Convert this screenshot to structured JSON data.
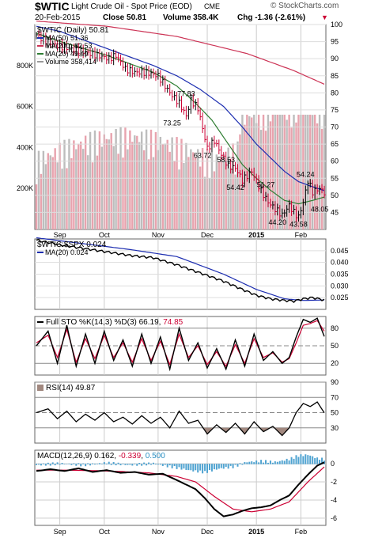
{
  "header": {
    "symbol": "$WTIC",
    "name": "Light Crude Oil - Spot Price (EOD)",
    "exchange": "CME",
    "date": "20-Feb-2015",
    "close": "Close 50.81",
    "volume": "Volume 358.4K",
    "change": "Chg -1.36 (-2.61%)",
    "change_arrow": "▼",
    "watermark": "© StockCharts.com",
    "colors": {
      "down": "#cc0033",
      "up": "#000000",
      "ma50": "#1c2db0",
      "ma200": "#cc3355",
      "ma20": "#2e7d32"
    }
  },
  "chart_data": [
    {
      "type": "bar",
      "title": "$WTIC (Daily) 50.81",
      "legend": [
        {
          "name": "MA(50) 51.36",
          "color": "#1c2db0"
        },
        {
          "name": "MA(200) 82.53",
          "color": "#cc3355"
        },
        {
          "name": "MA(20) 49.49",
          "color": "#2e7d32"
        },
        {
          "name": "Volume 358,414",
          "color": "#999999"
        }
      ],
      "x_tick_labels": [
        "Sep",
        "Oct",
        "Nov",
        "Dec",
        "2015",
        "Feb"
      ],
      "x_tick_positions": [
        10,
        29,
        52,
        73,
        94,
        113
      ],
      "num_days": 124,
      "ylim": [
        40,
        100
      ],
      "y_ticks": [
        45,
        50,
        55,
        60,
        65,
        70,
        75,
        80,
        85,
        90,
        95,
        100
      ],
      "volume_ticks": [
        "200K",
        "400K",
        "600K",
        "800K"
      ],
      "price_anchors_x": [
        0,
        3,
        8,
        14,
        20,
        26,
        31,
        34,
        38,
        42,
        47,
        52,
        57,
        61,
        64,
        66,
        69,
        73,
        76,
        79,
        82,
        85,
        88,
        92,
        96,
        99,
        102,
        105,
        108,
        110,
        112,
        114,
        116,
        118,
        121,
        123
      ],
      "price_anchors_y": [
        97,
        95.5,
        94,
        93,
        92,
        91,
        90,
        91,
        87,
        86,
        86,
        85,
        80,
        77,
        73.25,
        77.8,
        75.5,
        63.72,
        66,
        62,
        58.53,
        58,
        54.42,
        57,
        51.27,
        48,
        46,
        44.2,
        47,
        45,
        43.58,
        48,
        54.24,
        51,
        52,
        50.81
      ],
      "ma20_anchors_x": [
        0,
        8,
        20,
        30,
        40,
        50,
        60,
        68,
        75,
        82,
        88,
        94,
        100,
        106,
        112,
        118,
        123
      ],
      "ma20_anchors_y": [
        97.5,
        95.5,
        93,
        91,
        88.5,
        86,
        82,
        77,
        72,
        65,
        59,
        55,
        51.5,
        48.5,
        47.5,
        48.5,
        49.49
      ],
      "ma50_anchors_x": [
        0,
        10,
        20,
        30,
        40,
        50,
        60,
        70,
        80,
        88,
        94,
        100,
        106,
        112,
        118,
        123
      ],
      "ma50_anchors_y": [
        99.5,
        98,
        95.5,
        93,
        90.5,
        88,
        85,
        81,
        76,
        70,
        65,
        61,
        57,
        54,
        52.5,
        51.36
      ],
      "ma200_anchors_x": [
        0,
        30,
        60,
        90,
        110,
        123
      ],
      "ma200_anchors_y": [
        101,
        99.5,
        96.5,
        91.5,
        86.5,
        82.53
      ],
      "annotations": [
        {
          "text": "77.83",
          "day": 64,
          "price": 77.83
        },
        {
          "text": "73.25",
          "day": 58,
          "price": 73.25
        },
        {
          "text": "63.72",
          "day": 71,
          "price": 63.72
        },
        {
          "text": "58.53",
          "day": 81,
          "price": 58.53
        },
        {
          "text": "54.42",
          "day": 85,
          "price": 54.42
        },
        {
          "text": "51.27",
          "day": 98,
          "price": 51.27
        },
        {
          "text": "44.20",
          "day": 103,
          "price": 44.2
        },
        {
          "text": "43.58",
          "day": 112,
          "price": 43.58
        },
        {
          "text": "54.24",
          "day": 115,
          "price": 54.24
        },
        {
          "text": "48.05",
          "day": 121,
          "price": 48.05
        }
      ]
    },
    {
      "type": "line",
      "title": "$WTIC:$SPX 0.024",
      "legend": [
        {
          "name": "MA(20) 0.024",
          "color": "#1c2db0"
        }
      ],
      "ylim": [
        0.02,
        0.05
      ],
      "y_ticks": [
        0.025,
        0.03,
        0.035,
        0.04,
        0.045
      ],
      "y_tick_labels": [
        "0.025",
        "0.030",
        "0.035",
        "0.040",
        "0.045"
      ],
      "ratio_x": [
        0,
        10,
        20,
        30,
        40,
        50,
        60,
        70,
        80,
        88,
        94,
        100,
        106,
        110,
        114,
        118,
        123
      ],
      "ratio_y": [
        0.0495,
        0.0475,
        0.046,
        0.0445,
        0.043,
        0.042,
        0.039,
        0.0355,
        0.032,
        0.0285,
        0.026,
        0.0245,
        0.0238,
        0.0235,
        0.0245,
        0.025,
        0.024
      ],
      "ma_x": [
        0,
        20,
        40,
        60,
        80,
        94,
        106,
        114,
        123
      ],
      "ma_y": [
        0.0505,
        0.048,
        0.0455,
        0.0425,
        0.035,
        0.0285,
        0.0245,
        0.0238,
        0.024
      ]
    },
    {
      "type": "line",
      "title": "Full STO %K(14,3) %D(3) 66.19, 74.85",
      "title_parts": [
        "Full STO %K(14,3) %D(3) 66.19, ",
        "74.85"
      ],
      "ylim": [
        0,
        100
      ],
      "y_ticks": [
        20,
        50,
        80
      ],
      "k_x": [
        0,
        5,
        9,
        13,
        17,
        21,
        25,
        29,
        33,
        37,
        41,
        45,
        49,
        53,
        57,
        61,
        65,
        69,
        73,
        77,
        81,
        85,
        89,
        93,
        97,
        101,
        105,
        108,
        111,
        114,
        117,
        120,
        123
      ],
      "k_y": [
        50,
        75,
        20,
        85,
        15,
        70,
        20,
        75,
        25,
        60,
        15,
        70,
        20,
        65,
        10,
        80,
        25,
        55,
        12,
        45,
        10,
        60,
        15,
        70,
        25,
        40,
        20,
        30,
        65,
        95,
        90,
        97,
        66
      ],
      "d_x": [
        0,
        5,
        9,
        13,
        17,
        21,
        25,
        29,
        33,
        37,
        41,
        45,
        49,
        53,
        57,
        61,
        65,
        69,
        73,
        77,
        81,
        85,
        89,
        93,
        97,
        101,
        105,
        108,
        111,
        114,
        117,
        120,
        123
      ],
      "d_y": [
        55,
        68,
        30,
        78,
        22,
        62,
        28,
        68,
        30,
        55,
        22,
        62,
        25,
        58,
        18,
        70,
        30,
        50,
        18,
        40,
        15,
        52,
        20,
        62,
        30,
        38,
        22,
        28,
        55,
        85,
        88,
        93,
        75
      ]
    },
    {
      "type": "line",
      "title": "RSI(14) 49.87",
      "ylim": [
        10,
        90
      ],
      "y_ticks": [
        30,
        50,
        70,
        90
      ],
      "rsi_x": [
        0,
        5,
        9,
        13,
        17,
        21,
        25,
        29,
        33,
        37,
        41,
        45,
        49,
        53,
        57,
        61,
        65,
        69,
        73,
        77,
        81,
        85,
        89,
        93,
        97,
        101,
        105,
        108,
        111,
        114,
        117,
        120,
        123
      ],
      "rsi_y": [
        50,
        55,
        42,
        52,
        38,
        48,
        40,
        50,
        38,
        44,
        35,
        46,
        36,
        44,
        30,
        52,
        36,
        40,
        22,
        34,
        24,
        36,
        22,
        38,
        25,
        32,
        20,
        30,
        50,
        62,
        58,
        64,
        49.87
      ]
    },
    {
      "type": "line",
      "title": "MACD(12,26,9) 0.162, -0.339, 0.500",
      "title_parts": [
        "MACD(12,26,9) 0.162, ",
        "-0.339",
        ", ",
        "0.500"
      ],
      "ylim": [
        -6.8,
        1.5
      ],
      "y_ticks": [
        -6,
        -4,
        -2,
        0
      ],
      "macd_x": [
        0,
        6,
        12,
        18,
        24,
        30,
        36,
        42,
        48,
        54,
        60,
        64,
        68,
        72,
        76,
        80,
        84,
        88,
        92,
        96,
        100,
        104,
        108,
        112,
        116,
        120,
        123
      ],
      "macd_y": [
        -0.8,
        -0.6,
        -0.8,
        -0.5,
        -0.9,
        -0.7,
        -1.0,
        -0.9,
        -1.2,
        -1.1,
        -1.8,
        -2.3,
        -2.8,
        -3.8,
        -5.0,
        -5.8,
        -5.6,
        -5.2,
        -4.9,
        -4.8,
        -4.6,
        -4.0,
        -3.5,
        -2.3,
        -1.2,
        -0.2,
        0.16
      ],
      "signal_x": [
        0,
        12,
        24,
        36,
        48,
        60,
        68,
        76,
        84,
        92,
        100,
        108,
        116,
        123
      ],
      "signal_y": [
        -0.7,
        -0.7,
        -0.75,
        -0.85,
        -1.0,
        -1.4,
        -2.0,
        -3.6,
        -5.0,
        -5.3,
        -5.0,
        -4.2,
        -2.0,
        -0.34
      ],
      "hist_x": [
        0,
        10,
        20,
        30,
        40,
        50,
        60,
        66,
        72,
        78,
        84,
        90,
        96,
        102,
        108,
        112,
        116,
        120,
        123
      ],
      "hist_y": [
        -0.1,
        0.05,
        -0.1,
        0.1,
        -0.1,
        0.05,
        -0.4,
        -0.7,
        -0.9,
        -0.5,
        -0.3,
        0.2,
        0.3,
        0.2,
        0.5,
        0.9,
        1.0,
        0.6,
        0.5
      ]
    }
  ]
}
